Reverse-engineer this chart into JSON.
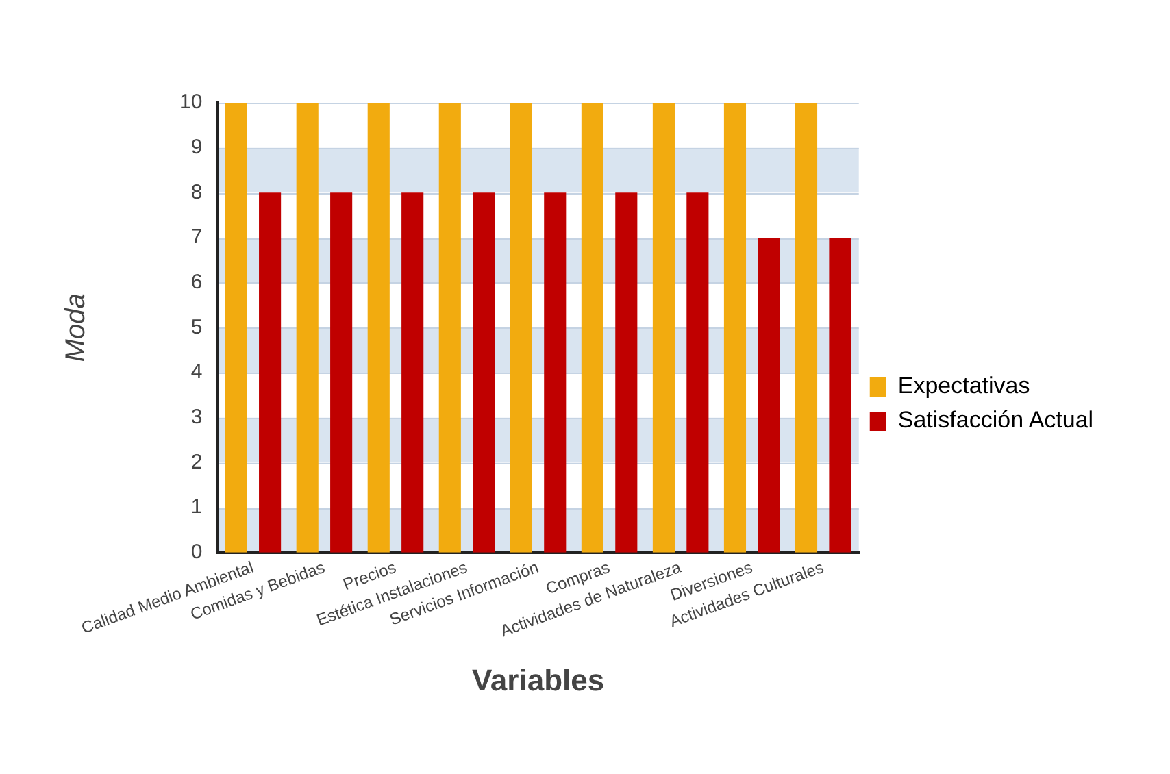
{
  "chart_data": {
    "type": "bar",
    "xlabel": "Variables",
    "ylabel": "Moda",
    "categories": [
      "Calidad Medio Ambiental",
      "Comidas y Bebidas",
      "Precios",
      "Estética Instalaciones",
      "Servicios Información",
      "Compras",
      "Actividades de Naturaleza",
      "Diversiones",
      "Actividades Culturales"
    ],
    "series": [
      {
        "name": "Expectativas",
        "color": "#f2ab0f",
        "values": [
          10,
          10,
          10,
          10,
          10,
          10,
          10,
          10,
          10
        ]
      },
      {
        "name": "Satisfacción Actual",
        "color": "#c00000",
        "values": [
          8,
          8,
          8,
          8,
          8,
          8,
          8,
          7,
          7
        ]
      }
    ],
    "ylim": [
      0,
      10
    ],
    "yticks": [
      0,
      1,
      2,
      3,
      4,
      5,
      6,
      7,
      8,
      9,
      10
    ],
    "grid": "y",
    "legend": "right"
  }
}
